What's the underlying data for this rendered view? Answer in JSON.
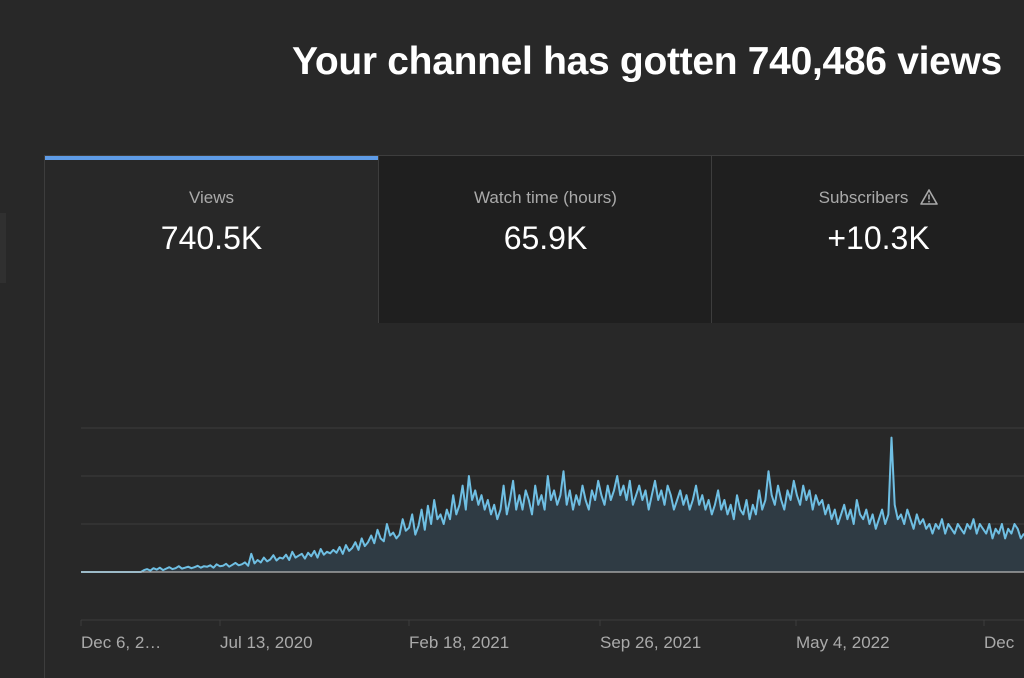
{
  "headline": "Your channel has gotten 740,486 views ",
  "tabs": [
    {
      "label": "Views",
      "value": "740.5K",
      "selected": true
    },
    {
      "label": "Watch time (hours)",
      "value": "65.9K",
      "selected": false
    },
    {
      "label": "Subscribers",
      "value": "+10.3K",
      "selected": false,
      "icon": "warning-icon"
    }
  ],
  "colors": {
    "accent": "#5e9be6",
    "line": "#6fbfe3",
    "area": "#2f3b44",
    "grid": "#3d3d3d",
    "baseline": "#b8b8b8"
  },
  "chart_data": {
    "type": "area",
    "x_tick_labels": [
      "Dec 6, 2…",
      "Jul 13, 2020",
      "Feb 18, 2021",
      "Sep 26, 2021",
      "May 4, 2022",
      "Dec "
    ],
    "x_range": [
      "2019-12-06",
      "2022-12-12"
    ],
    "ylim": [
      0,
      3000
    ],
    "grid": true,
    "series": [
      {
        "values": [
          0,
          0,
          0,
          0,
          0,
          0,
          0,
          0,
          0,
          0,
          0,
          0,
          0,
          0,
          0,
          0,
          0,
          0,
          0,
          0,
          40,
          60,
          30,
          80,
          50,
          90,
          40,
          70,
          100,
          60,
          80,
          120,
          70,
          90,
          110,
          80,
          100,
          130,
          90,
          120,
          110,
          140,
          90,
          160,
          120,
          130,
          170,
          110,
          150,
          190,
          140,
          160,
          200,
          130,
          380,
          180,
          250,
          200,
          300,
          220,
          260,
          350,
          240,
          300,
          280,
          360,
          250,
          420,
          300,
          340,
          380,
          280,
          400,
          330,
          440,
          300,
          480,
          360,
          420,
          390,
          460,
          400,
          520,
          380,
          560,
          440,
          500,
          620,
          460,
          700,
          540,
          620,
          760,
          600,
          880,
          700,
          640,
          1000,
          760,
          820,
          700,
          780,
          1100,
          860,
          920,
          1200,
          780,
          960,
          1300,
          880,
          1380,
          1000,
          1500,
          1100,
          1200,
          1000,
          1300,
          1100,
          1600,
          1200,
          1400,
          1800,
          1300,
          2000,
          1500,
          1700,
          1400,
          1600,
          1300,
          1500,
          1200,
          1400,
          1100,
          1300,
          1800,
          1200,
          1500,
          1900,
          1300,
          1600,
          1300,
          1700,
          1500,
          1200,
          1800,
          1400,
          1600,
          1300,
          2000,
          1500,
          1700,
          1400,
          1600,
          2100,
          1400,
          1700,
          1300,
          1600,
          1400,
          1800,
          1500,
          1300,
          1700,
          1500,
          1900,
          1600,
          1400,
          1800,
          1500,
          1700,
          2000,
          1600,
          1800,
          1500,
          1900,
          1400,
          1600,
          1800,
          1500,
          1700,
          1300,
          1600,
          1900,
          1500,
          1700,
          1400,
          1800,
          1600,
          1300,
          1500,
          1700,
          1400,
          1600,
          1300,
          1500,
          1800,
          1400,
          1600,
          1300,
          1500,
          1200,
          1400,
          1700,
          1300,
          1500,
          1200,
          1400,
          1100,
          1600,
          1300,
          1200,
          1500,
          1100,
          1400,
          1200,
          1700,
          1300,
          1500,
          2100,
          1600,
          1400,
          1800,
          1500,
          1300,
          1700,
          1500,
          1900,
          1600,
          1400,
          1800,
          1500,
          1700,
          1300,
          1600,
          1400,
          1500,
          1200,
          1400,
          1100,
          1300,
          1000,
          1200,
          1400,
          1100,
          1300,
          1000,
          1500,
          1200,
          1100,
          1300,
          1000,
          1200,
          900,
          1100,
          1300,
          1000,
          1200,
          2800,
          1400,
          1100,
          1200,
          1000,
          1300,
          1100,
          900,
          1200,
          1000,
          1100,
          900,
          1000,
          800,
          1000,
          900,
          1100,
          800,
          1000,
          900,
          800,
          1000,
          900,
          800,
          1000,
          900,
          1100,
          800,
          1000,
          900,
          800,
          1000,
          700,
          900,
          800,
          1000,
          700,
          900,
          800,
          1000,
          900,
          700,
          800
        ]
      }
    ]
  }
}
